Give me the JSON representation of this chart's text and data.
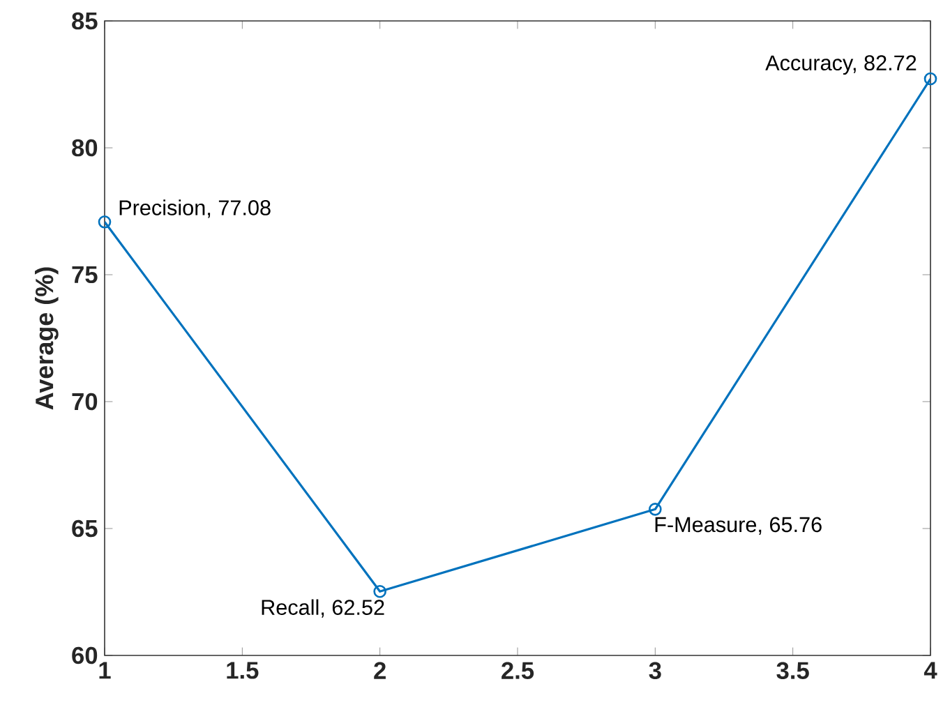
{
  "chart_data": {
    "type": "line",
    "ylabel": "Average (%)",
    "x": [
      1,
      2,
      3,
      4
    ],
    "series": [
      {
        "color": "#0072bd",
        "values": [
          77.08,
          62.52,
          65.76,
          82.72
        ]
      }
    ],
    "xlim": [
      1,
      4
    ],
    "xticks": [
      1,
      1.5,
      2,
      2.5,
      3,
      3.5,
      4
    ],
    "ylim": [
      60,
      85
    ],
    "yticks": [
      60,
      65,
      70,
      75,
      80,
      85
    ],
    "marker": "circle",
    "line_style": "solid",
    "grid": false,
    "annotations": [
      {
        "text": "Precision, 77.08",
        "x": 1,
        "y": 77.08
      },
      {
        "text": "Recall, 62.52",
        "x": 2,
        "y": 62.52
      },
      {
        "text": "F-Measure, 65.76",
        "x": 3,
        "y": 65.76
      },
      {
        "text": "Accuracy, 82.72",
        "x": 4,
        "y": 82.72
      }
    ]
  }
}
